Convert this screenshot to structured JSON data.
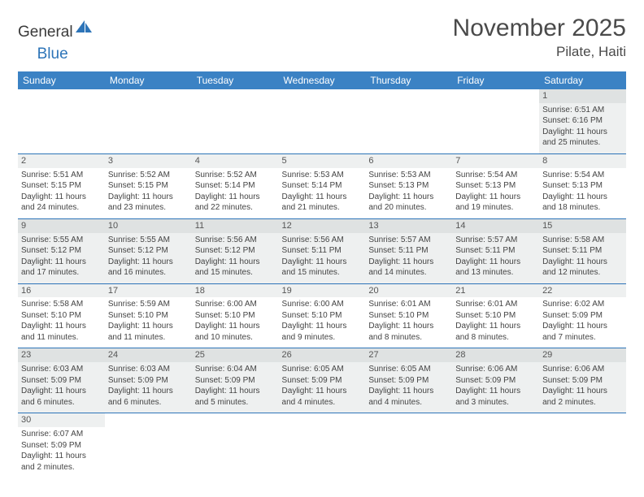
{
  "logo": {
    "text1": "General",
    "text2": "Blue"
  },
  "title": "November 2025",
  "location": "Pilate, Haiti",
  "colors": {
    "header_bg": "#3b82c4",
    "header_text": "#ffffff",
    "row_alt_bg": "#eef0f0",
    "row_bg": "#ffffff",
    "daynum_bg_dark": "#dfe2e2",
    "daynum_bg_light": "#eef0f0",
    "border": "#2d74b8",
    "logo_blue": "#2d74b8",
    "text": "#3a3a3a"
  },
  "weekdays": [
    "Sunday",
    "Monday",
    "Tuesday",
    "Wednesday",
    "Thursday",
    "Friday",
    "Saturday"
  ],
  "weeks": [
    [
      null,
      null,
      null,
      null,
      null,
      null,
      {
        "n": "1",
        "sr": "Sunrise: 6:51 AM",
        "ss": "Sunset: 6:16 PM",
        "d1": "Daylight: 11 hours",
        "d2": "and 25 minutes."
      }
    ],
    [
      {
        "n": "2",
        "sr": "Sunrise: 5:51 AM",
        "ss": "Sunset: 5:15 PM",
        "d1": "Daylight: 11 hours",
        "d2": "and 24 minutes."
      },
      {
        "n": "3",
        "sr": "Sunrise: 5:52 AM",
        "ss": "Sunset: 5:15 PM",
        "d1": "Daylight: 11 hours",
        "d2": "and 23 minutes."
      },
      {
        "n": "4",
        "sr": "Sunrise: 5:52 AM",
        "ss": "Sunset: 5:14 PM",
        "d1": "Daylight: 11 hours",
        "d2": "and 22 minutes."
      },
      {
        "n": "5",
        "sr": "Sunrise: 5:53 AM",
        "ss": "Sunset: 5:14 PM",
        "d1": "Daylight: 11 hours",
        "d2": "and 21 minutes."
      },
      {
        "n": "6",
        "sr": "Sunrise: 5:53 AM",
        "ss": "Sunset: 5:13 PM",
        "d1": "Daylight: 11 hours",
        "d2": "and 20 minutes."
      },
      {
        "n": "7",
        "sr": "Sunrise: 5:54 AM",
        "ss": "Sunset: 5:13 PM",
        "d1": "Daylight: 11 hours",
        "d2": "and 19 minutes."
      },
      {
        "n": "8",
        "sr": "Sunrise: 5:54 AM",
        "ss": "Sunset: 5:13 PM",
        "d1": "Daylight: 11 hours",
        "d2": "and 18 minutes."
      }
    ],
    [
      {
        "n": "9",
        "sr": "Sunrise: 5:55 AM",
        "ss": "Sunset: 5:12 PM",
        "d1": "Daylight: 11 hours",
        "d2": "and 17 minutes."
      },
      {
        "n": "10",
        "sr": "Sunrise: 5:55 AM",
        "ss": "Sunset: 5:12 PM",
        "d1": "Daylight: 11 hours",
        "d2": "and 16 minutes."
      },
      {
        "n": "11",
        "sr": "Sunrise: 5:56 AM",
        "ss": "Sunset: 5:12 PM",
        "d1": "Daylight: 11 hours",
        "d2": "and 15 minutes."
      },
      {
        "n": "12",
        "sr": "Sunrise: 5:56 AM",
        "ss": "Sunset: 5:11 PM",
        "d1": "Daylight: 11 hours",
        "d2": "and 15 minutes."
      },
      {
        "n": "13",
        "sr": "Sunrise: 5:57 AM",
        "ss": "Sunset: 5:11 PM",
        "d1": "Daylight: 11 hours",
        "d2": "and 14 minutes."
      },
      {
        "n": "14",
        "sr": "Sunrise: 5:57 AM",
        "ss": "Sunset: 5:11 PM",
        "d1": "Daylight: 11 hours",
        "d2": "and 13 minutes."
      },
      {
        "n": "15",
        "sr": "Sunrise: 5:58 AM",
        "ss": "Sunset: 5:11 PM",
        "d1": "Daylight: 11 hours",
        "d2": "and 12 minutes."
      }
    ],
    [
      {
        "n": "16",
        "sr": "Sunrise: 5:58 AM",
        "ss": "Sunset: 5:10 PM",
        "d1": "Daylight: 11 hours",
        "d2": "and 11 minutes."
      },
      {
        "n": "17",
        "sr": "Sunrise: 5:59 AM",
        "ss": "Sunset: 5:10 PM",
        "d1": "Daylight: 11 hours",
        "d2": "and 11 minutes."
      },
      {
        "n": "18",
        "sr": "Sunrise: 6:00 AM",
        "ss": "Sunset: 5:10 PM",
        "d1": "Daylight: 11 hours",
        "d2": "and 10 minutes."
      },
      {
        "n": "19",
        "sr": "Sunrise: 6:00 AM",
        "ss": "Sunset: 5:10 PM",
        "d1": "Daylight: 11 hours",
        "d2": "and 9 minutes."
      },
      {
        "n": "20",
        "sr": "Sunrise: 6:01 AM",
        "ss": "Sunset: 5:10 PM",
        "d1": "Daylight: 11 hours",
        "d2": "and 8 minutes."
      },
      {
        "n": "21",
        "sr": "Sunrise: 6:01 AM",
        "ss": "Sunset: 5:10 PM",
        "d1": "Daylight: 11 hours",
        "d2": "and 8 minutes."
      },
      {
        "n": "22",
        "sr": "Sunrise: 6:02 AM",
        "ss": "Sunset: 5:09 PM",
        "d1": "Daylight: 11 hours",
        "d2": "and 7 minutes."
      }
    ],
    [
      {
        "n": "23",
        "sr": "Sunrise: 6:03 AM",
        "ss": "Sunset: 5:09 PM",
        "d1": "Daylight: 11 hours",
        "d2": "and 6 minutes."
      },
      {
        "n": "24",
        "sr": "Sunrise: 6:03 AM",
        "ss": "Sunset: 5:09 PM",
        "d1": "Daylight: 11 hours",
        "d2": "and 6 minutes."
      },
      {
        "n": "25",
        "sr": "Sunrise: 6:04 AM",
        "ss": "Sunset: 5:09 PM",
        "d1": "Daylight: 11 hours",
        "d2": "and 5 minutes."
      },
      {
        "n": "26",
        "sr": "Sunrise: 6:05 AM",
        "ss": "Sunset: 5:09 PM",
        "d1": "Daylight: 11 hours",
        "d2": "and 4 minutes."
      },
      {
        "n": "27",
        "sr": "Sunrise: 6:05 AM",
        "ss": "Sunset: 5:09 PM",
        "d1": "Daylight: 11 hours",
        "d2": "and 4 minutes."
      },
      {
        "n": "28",
        "sr": "Sunrise: 6:06 AM",
        "ss": "Sunset: 5:09 PM",
        "d1": "Daylight: 11 hours",
        "d2": "and 3 minutes."
      },
      {
        "n": "29",
        "sr": "Sunrise: 6:06 AM",
        "ss": "Sunset: 5:09 PM",
        "d1": "Daylight: 11 hours",
        "d2": "and 2 minutes."
      }
    ],
    [
      {
        "n": "30",
        "sr": "Sunrise: 6:07 AM",
        "ss": "Sunset: 5:09 PM",
        "d1": "Daylight: 11 hours",
        "d2": "and 2 minutes."
      },
      null,
      null,
      null,
      null,
      null,
      null
    ]
  ]
}
